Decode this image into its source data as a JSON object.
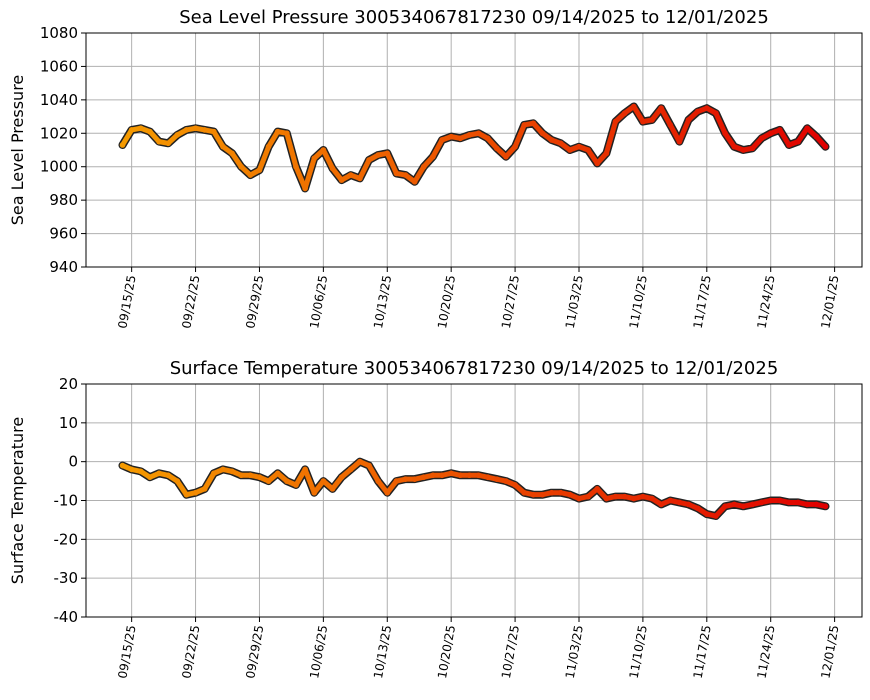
{
  "chart_data": [
    {
      "type": "scatter",
      "title": "Sea Level Pressure 300534067817230  09/14/2025 to 12/01/2025",
      "y_label": "Sea Level Pressure",
      "xlim": [
        "09/10/25",
        "12/04/25"
      ],
      "xticks": [
        "09/15/25",
        "09/22/25",
        "09/29/25",
        "10/06/25",
        "10/13/25",
        "10/20/25",
        "10/27/25",
        "11/03/25",
        "11/10/25",
        "11/17/25",
        "11/24/25",
        "12/01/25"
      ],
      "ylim": [
        940,
        1080
      ],
      "yticks": [
        940,
        960,
        980,
        1000,
        1020,
        1040,
        1060,
        1080
      ],
      "grid": true,
      "color_range": [
        "#f59a00",
        "#e00000"
      ],
      "x": [
        "09/14/25",
        "09/15/25",
        "09/16/25",
        "09/17/25",
        "09/18/25",
        "09/19/25",
        "09/20/25",
        "09/21/25",
        "09/22/25",
        "09/23/25",
        "09/24/25",
        "09/25/25",
        "09/26/25",
        "09/27/25",
        "09/28/25",
        "09/29/25",
        "09/30/25",
        "10/01/25",
        "10/02/25",
        "10/03/25",
        "10/04/25",
        "10/05/25",
        "10/06/25",
        "10/07/25",
        "10/08/25",
        "10/09/25",
        "10/10/25",
        "10/11/25",
        "10/12/25",
        "10/13/25",
        "10/14/25",
        "10/15/25",
        "10/16/25",
        "10/17/25",
        "10/18/25",
        "10/19/25",
        "10/20/25",
        "10/21/25",
        "10/22/25",
        "10/23/25",
        "10/24/25",
        "10/25/25",
        "10/26/25",
        "10/27/25",
        "10/28/25",
        "10/29/25",
        "10/30/25",
        "10/31/25",
        "11/01/25",
        "11/02/25",
        "11/03/25",
        "11/04/25",
        "11/05/25",
        "11/06/25",
        "11/07/25",
        "11/08/25",
        "11/09/25",
        "11/10/25",
        "11/11/25",
        "11/12/25",
        "11/13/25",
        "11/14/25",
        "11/15/25",
        "11/16/25",
        "11/17/25",
        "11/18/25",
        "11/19/25",
        "11/20/25",
        "11/21/25",
        "11/22/25",
        "11/23/25",
        "11/24/25",
        "11/25/25",
        "11/26/25",
        "11/27/25",
        "11/28/25",
        "11/29/25",
        "11/30/25"
      ],
      "values": [
        1013,
        1022,
        1023,
        1021,
        1015,
        1014,
        1019,
        1022,
        1023,
        1022,
        1021,
        1012,
        1008,
        1000,
        995,
        998,
        1012,
        1021,
        1020,
        1000,
        987,
        1005,
        1010,
        999,
        992,
        995,
        993,
        1004,
        1007,
        1008,
        996,
        995,
        991,
        1000,
        1006,
        1016,
        1018,
        1017,
        1019,
        1020,
        1017,
        1011,
        1006,
        1012,
        1025,
        1026,
        1020,
        1016,
        1014,
        1010,
        1012,
        1010,
        1002,
        1008,
        1027,
        1032,
        1036,
        1027,
        1028,
        1035,
        1025,
        1015,
        1028,
        1033,
        1035,
        1032,
        1020,
        1012,
        1010,
        1011,
        1017,
        1020,
        1022,
        1013,
        1015,
        1023,
        1018,
        1012
      ]
    },
    {
      "type": "scatter",
      "title": "Surface Temperature 300534067817230  09/14/2025 to 12/01/2025",
      "y_label": "Surface Temperature",
      "xlim": [
        "09/10/25",
        "12/04/25"
      ],
      "xticks": [
        "09/15/25",
        "09/22/25",
        "09/29/25",
        "10/06/25",
        "10/13/25",
        "10/20/25",
        "10/27/25",
        "11/03/25",
        "11/10/25",
        "11/17/25",
        "11/24/25",
        "12/01/25"
      ],
      "ylim": [
        -40,
        20
      ],
      "yticks": [
        -40,
        -30,
        -20,
        -10,
        0,
        10,
        20
      ],
      "grid": true,
      "color_range": [
        "#f59a00",
        "#e00000"
      ],
      "x": [
        "09/14/25",
        "09/15/25",
        "09/16/25",
        "09/17/25",
        "09/18/25",
        "09/19/25",
        "09/20/25",
        "09/21/25",
        "09/22/25",
        "09/23/25",
        "09/24/25",
        "09/25/25",
        "09/26/25",
        "09/27/25",
        "09/28/25",
        "09/29/25",
        "09/30/25",
        "10/01/25",
        "10/02/25",
        "10/03/25",
        "10/04/25",
        "10/05/25",
        "10/06/25",
        "10/07/25",
        "10/08/25",
        "10/09/25",
        "10/10/25",
        "10/11/25",
        "10/12/25",
        "10/13/25",
        "10/14/25",
        "10/15/25",
        "10/16/25",
        "10/17/25",
        "10/18/25",
        "10/19/25",
        "10/20/25",
        "10/21/25",
        "10/22/25",
        "10/23/25",
        "10/24/25",
        "10/25/25",
        "10/26/25",
        "10/27/25",
        "10/28/25",
        "10/29/25",
        "10/30/25",
        "10/31/25",
        "11/01/25",
        "11/02/25",
        "11/03/25",
        "11/04/25",
        "11/05/25",
        "11/06/25",
        "11/07/25",
        "11/08/25",
        "11/09/25",
        "11/10/25",
        "11/11/25",
        "11/12/25",
        "11/13/25",
        "11/14/25",
        "11/15/25",
        "11/16/25",
        "11/17/25",
        "11/18/25",
        "11/19/25",
        "11/20/25",
        "11/21/25",
        "11/22/25",
        "11/23/25",
        "11/24/25",
        "11/25/25",
        "11/26/25",
        "11/27/25",
        "11/28/25",
        "11/29/25",
        "11/30/25"
      ],
      "values": [
        -1,
        -2,
        -2.5,
        -4,
        -3,
        -3.5,
        -5,
        -8.5,
        -8,
        -7,
        -3,
        -2,
        -2.5,
        -3.5,
        -3.5,
        -4,
        -5,
        -3,
        -5,
        -6,
        -2,
        -8,
        -5,
        -7,
        -4,
        -2,
        0,
        -1,
        -5,
        -8,
        -5,
        -4.5,
        -4.5,
        -4,
        -3.5,
        -3.5,
        -3,
        -3.5,
        -3.5,
        -3.5,
        -4,
        -4.5,
        -5,
        -6,
        -8,
        -8.5,
        -8.5,
        -8,
        -8,
        -8.5,
        -9.5,
        -9,
        -7,
        -9.5,
        -9,
        -9,
        -9.5,
        -9,
        -9.5,
        -11,
        -10,
        -10.5,
        -11,
        -12,
        -13.5,
        -14,
        -11.5,
        -11,
        -11.5,
        -11,
        -10.5,
        -10,
        -10,
        -10.5,
        -10.5,
        -11,
        -11,
        -11.5
      ]
    }
  ]
}
